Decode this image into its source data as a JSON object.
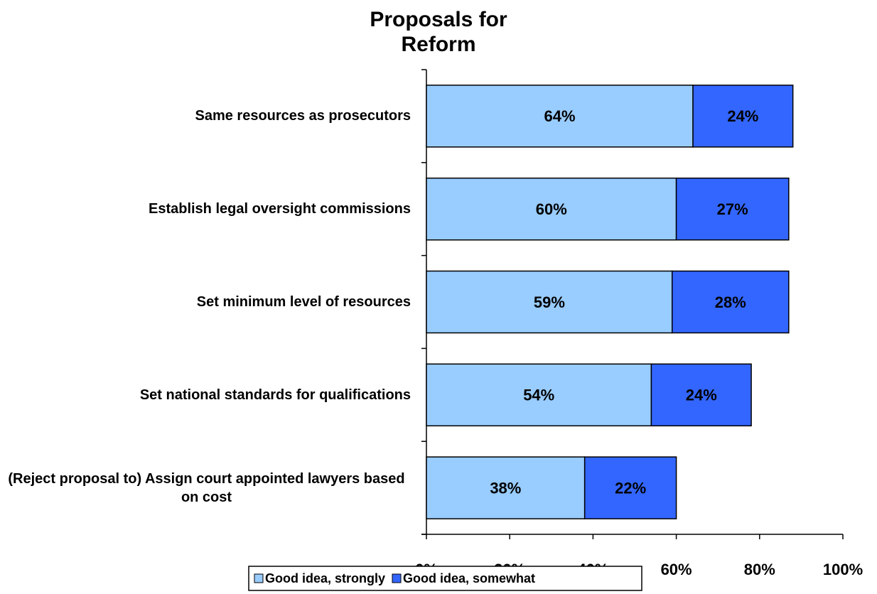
{
  "chart_data": {
    "type": "bar",
    "orientation": "horizontal",
    "stacked": true,
    "title": "Proposals for Reform",
    "categories": [
      "Same resources as prosecutors",
      "Establish legal oversight commissions",
      "Set minimum level of resources",
      "Set national standards for qualifications",
      "(Reject proposal to) Assign court appointed lawyers based on cost"
    ],
    "series": [
      {
        "name": "Good idea, strongly",
        "color": "#99ccff",
        "values": [
          64,
          60,
          59,
          54,
          38
        ],
        "value_labels": [
          "64%",
          "60%",
          "59%",
          "54%",
          "38%"
        ]
      },
      {
        "name": "Good idea, somewhat",
        "color": "#3366ff",
        "values": [
          24,
          27,
          28,
          24,
          22
        ],
        "value_labels": [
          "24%",
          "27%",
          "28%",
          "24%",
          "22%"
        ]
      }
    ],
    "xlim": [
      0,
      100
    ],
    "xticks": [
      {
        "value": 0,
        "label": "0%"
      },
      {
        "value": 20,
        "label": "20%"
      },
      {
        "value": 40,
        "label": "40%"
      },
      {
        "value": 60,
        "label": "60%"
      },
      {
        "value": 80,
        "label": "80%"
      },
      {
        "value": 100,
        "label": "100%"
      }
    ],
    "legend": "bottom"
  }
}
